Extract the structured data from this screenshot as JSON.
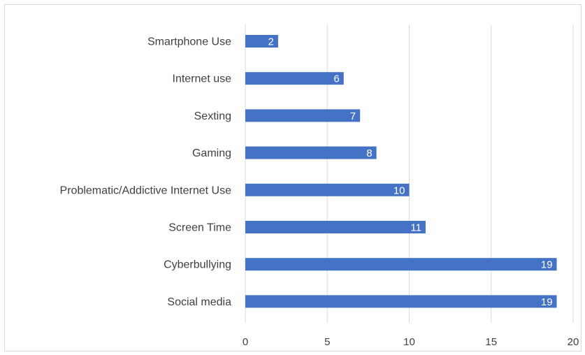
{
  "chart_data": {
    "type": "bar",
    "orientation": "horizontal",
    "categories": [
      "Smartphone Use",
      "Internet use",
      "Sexting",
      "Gaming",
      "Problematic/Addictive Internet Use",
      "Screen Time",
      "Cyberbullying",
      "Social media"
    ],
    "values": [
      2,
      6,
      7,
      8,
      10,
      11,
      19,
      19
    ],
    "xlim": [
      0,
      20
    ],
    "xticks": [
      "0",
      "5",
      "10",
      "15",
      "20"
    ],
    "grid": "vertical",
    "legend": "none",
    "title": "",
    "xlabel": "",
    "ylabel": "",
    "colors": {
      "bar": "#4472c4",
      "grid": "#d9d9d9",
      "text": "#404040",
      "data_label": "#ffffff"
    }
  }
}
